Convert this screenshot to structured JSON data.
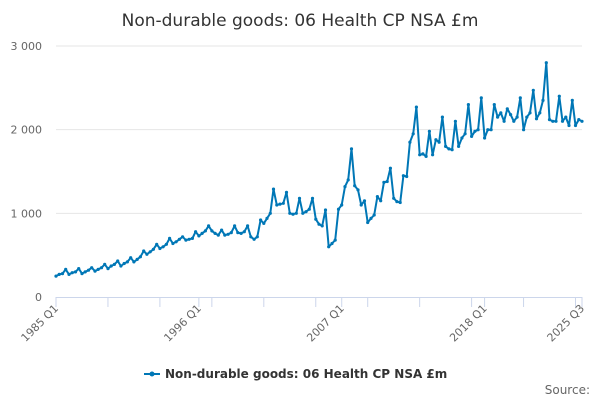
{
  "chart_data": {
    "type": "line",
    "title": "Non-durable goods: 06 Health CP NSA £m",
    "xlabel": "",
    "ylabel": "",
    "ylim": [
      0,
      3000
    ],
    "y_ticks": [
      0,
      1000,
      2000,
      3000
    ],
    "y_tick_labels": [
      "0",
      "1 000",
      "2 000",
      "3 000"
    ],
    "x_start": "1985 Q1",
    "x_end": "2025 Q3",
    "x_tick_labels": [
      {
        "label": "1985 Q1",
        "index": 0
      },
      {
        "label": "1996 Q1",
        "index": 44
      },
      {
        "label": "2007 Q1",
        "index": 88
      },
      {
        "label": "2018 Q1",
        "index": 132
      },
      {
        "label": "2025 Q3",
        "index": 162
      }
    ],
    "legend": "Non-durable goods: 06 Health CP NSA £m",
    "source_label": "Source:",
    "color": "#0077b6",
    "series": [
      {
        "name": "Non-durable goods: 06 Health CP NSA £m",
        "values": [
          250,
          270,
          280,
          330,
          270,
          290,
          300,
          340,
          280,
          300,
          320,
          350,
          310,
          330,
          350,
          390,
          340,
          370,
          390,
          430,
          370,
          400,
          420,
          470,
          420,
          450,
          480,
          550,
          510,
          540,
          570,
          630,
          580,
          600,
          630,
          700,
          640,
          660,
          690,
          720,
          680,
          690,
          700,
          780,
          730,
          760,
          790,
          850,
          790,
          760,
          740,
          800,
          740,
          750,
          770,
          850,
          770,
          760,
          780,
          850,
          720,
          690,
          720,
          920,
          880,
          940,
          1000,
          1290,
          1100,
          1110,
          1120,
          1250,
          1000,
          990,
          1000,
          1180,
          1000,
          1020,
          1050,
          1180,
          930,
          870,
          850,
          1040,
          600,
          640,
          680,
          1050,
          1100,
          1320,
          1400,
          1770,
          1330,
          1280,
          1100,
          1150,
          890,
          940,
          980,
          1200,
          1150,
          1370,
          1380,
          1540,
          1180,
          1140,
          1130,
          1450,
          1440,
          1850,
          1950,
          2270,
          1700,
          1710,
          1680,
          1980,
          1700,
          1880,
          1850,
          2150,
          1800,
          1770,
          1760,
          2100,
          1800,
          1900,
          1950,
          2300,
          1920,
          1980,
          2000,
          2380,
          1900,
          2000,
          2000,
          2300,
          2150,
          2200,
          2100,
          2250,
          2180,
          2100,
          2150,
          2380,
          2000,
          2150,
          2200,
          2470,
          2130,
          2200,
          2350,
          2800,
          2120,
          2100,
          2100,
          2400,
          2100,
          2150,
          2050,
          2350,
          2050,
          2120,
          2100
        ]
      }
    ]
  }
}
